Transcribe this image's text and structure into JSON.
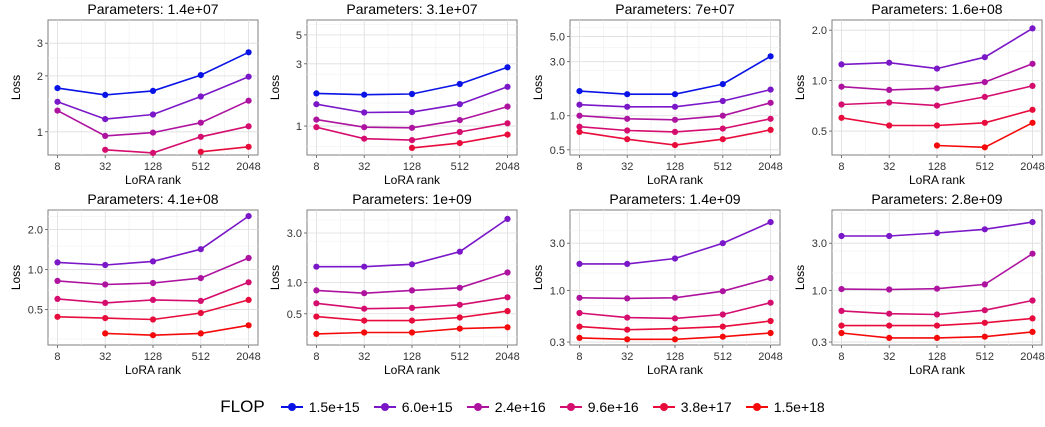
{
  "legend": {
    "title": "FLOP",
    "items": [
      {
        "label": "1.5e+15",
        "color": "#0a13e6"
      },
      {
        "label": "6.0e+15",
        "color": "#7a17c8"
      },
      {
        "label": "2.4e+16",
        "color": "#ad139e"
      },
      {
        "label": "9.6e+16",
        "color": "#d40d6e"
      },
      {
        "label": "3.8e+17",
        "color": "#e80c3c"
      },
      {
        "label": "1.5e+18",
        "color": "#f40a0a"
      }
    ]
  },
  "chart_data": [
    {
      "type": "line",
      "title": "Parameters: 1.4e+07",
      "xlabel": "LoRA rank",
      "ylabel": "Loss",
      "x": [
        8,
        32,
        128,
        512,
        2048
      ],
      "x_scale": "log2",
      "y_scale": "log10",
      "ylim": [
        0.75,
        4.0
      ],
      "yticks": [
        1,
        2,
        3
      ],
      "ytick_labels": [
        "1",
        "2",
        "3"
      ],
      "series": [
        {
          "name": "1.5e+15",
          "values": [
            1.72,
            1.58,
            1.66,
            2.02,
            2.68
          ]
        },
        {
          "name": "6.0e+15",
          "values": [
            1.45,
            1.17,
            1.24,
            1.55,
            1.98
          ]
        },
        {
          "name": "2.4e+16",
          "values": [
            1.3,
            0.95,
            0.99,
            1.12,
            1.47
          ]
        },
        {
          "name": "9.6e+16",
          "values": [
            null,
            0.8,
            0.77,
            0.94,
            1.07
          ]
        },
        {
          "name": "3.8e+17",
          "values": [
            null,
            null,
            null,
            0.78,
            0.83
          ]
        },
        {
          "name": "1.5e+18",
          "values": [
            null,
            null,
            null,
            null,
            null
          ]
        }
      ]
    },
    {
      "type": "line",
      "title": "Parameters: 3.1e+07",
      "xlabel": "LoRA rank",
      "ylabel": "Loss",
      "x": [
        8,
        32,
        128,
        512,
        2048
      ],
      "x_scale": "log2",
      "y_scale": "log10",
      "ylim": [
        0.6,
        6.5
      ],
      "yticks": [
        1,
        3,
        5
      ],
      "ytick_labels": [
        "1",
        "3",
        "5"
      ],
      "series": [
        {
          "name": "1.5e+15",
          "values": [
            1.78,
            1.74,
            1.76,
            2.1,
            2.82
          ]
        },
        {
          "name": "6.0e+15",
          "values": [
            1.47,
            1.27,
            1.28,
            1.47,
            2.0
          ]
        },
        {
          "name": "2.4e+16",
          "values": [
            1.12,
            0.98,
            0.97,
            1.11,
            1.41
          ]
        },
        {
          "name": "9.6e+16",
          "values": [
            0.98,
            0.8,
            0.78,
            0.9,
            1.05
          ]
        },
        {
          "name": "3.8e+17",
          "values": [
            null,
            null,
            0.68,
            0.74,
            0.86
          ]
        },
        {
          "name": "1.5e+18",
          "values": [
            null,
            null,
            null,
            null,
            null
          ]
        }
      ]
    },
    {
      "type": "line",
      "title": "Parameters: 7e+07",
      "xlabel": "LoRA rank",
      "ylabel": "Loss",
      "x": [
        8,
        32,
        128,
        512,
        2048
      ],
      "x_scale": "log2",
      "y_scale": "log10",
      "ylim": [
        0.45,
        7.0
      ],
      "yticks": [
        0.5,
        1.0,
        3.0,
        5.0
      ],
      "ytick_labels": [
        "0.5",
        "1.0",
        "3.0",
        "5.0"
      ],
      "series": [
        {
          "name": "1.5e+15",
          "values": [
            1.65,
            1.55,
            1.55,
            1.9,
            3.35
          ]
        },
        {
          "name": "6.0e+15",
          "values": [
            1.25,
            1.2,
            1.2,
            1.35,
            1.7
          ]
        },
        {
          "name": "2.4e+16",
          "values": [
            1.0,
            0.94,
            0.92,
            1.0,
            1.3
          ]
        },
        {
          "name": "9.6e+16",
          "values": [
            0.8,
            0.74,
            0.72,
            0.77,
            0.94
          ]
        },
        {
          "name": "3.8e+17",
          "values": [
            0.72,
            0.62,
            0.55,
            0.62,
            0.75
          ]
        },
        {
          "name": "1.5e+18",
          "values": [
            null,
            null,
            null,
            null,
            null
          ]
        }
      ]
    },
    {
      "type": "line",
      "title": "Parameters: 1.6e+08",
      "xlabel": "LoRA rank",
      "ylabel": "Loss",
      "x": [
        8,
        32,
        128,
        512,
        2048
      ],
      "x_scale": "log2",
      "y_scale": "log10",
      "ylim": [
        0.36,
        2.3
      ],
      "yticks": [
        0.5,
        1.0,
        2.0
      ],
      "ytick_labels": [
        "0.5",
        "1.0",
        "2.0"
      ],
      "series": [
        {
          "name": "1.5e+15",
          "values": [
            null,
            null,
            null,
            null,
            null
          ]
        },
        {
          "name": "6.0e+15",
          "values": [
            1.25,
            1.28,
            1.18,
            1.38,
            2.05
          ]
        },
        {
          "name": "2.4e+16",
          "values": [
            0.92,
            0.88,
            0.9,
            0.98,
            1.26
          ]
        },
        {
          "name": "9.6e+16",
          "values": [
            0.72,
            0.74,
            0.71,
            0.8,
            0.93
          ]
        },
        {
          "name": "3.8e+17",
          "values": [
            0.6,
            0.54,
            0.54,
            0.56,
            0.67
          ]
        },
        {
          "name": "1.5e+18",
          "values": [
            null,
            null,
            0.41,
            0.4,
            0.56
          ]
        }
      ]
    },
    {
      "type": "line",
      "title": "Parameters: 4.1e+08",
      "xlabel": "LoRA rank",
      "ylabel": "Loss",
      "x": [
        8,
        32,
        128,
        512,
        2048
      ],
      "x_scale": "log2",
      "y_scale": "log10",
      "ylim": [
        0.27,
        2.8
      ],
      "yticks": [
        0.5,
        1.0,
        2.0
      ],
      "ytick_labels": [
        "0.5",
        "1.0",
        "2.0"
      ],
      "series": [
        {
          "name": "1.5e+15",
          "values": [
            null,
            null,
            null,
            null,
            null
          ]
        },
        {
          "name": "6.0e+15",
          "values": [
            1.13,
            1.08,
            1.15,
            1.42,
            2.52
          ]
        },
        {
          "name": "2.4e+16",
          "values": [
            0.82,
            0.77,
            0.79,
            0.86,
            1.22
          ]
        },
        {
          "name": "9.6e+16",
          "values": [
            0.6,
            0.56,
            0.59,
            0.58,
            0.8
          ]
        },
        {
          "name": "3.8e+17",
          "values": [
            0.44,
            0.43,
            0.42,
            0.47,
            0.59
          ]
        },
        {
          "name": "1.5e+18",
          "values": [
            null,
            0.33,
            0.32,
            0.33,
            0.38
          ]
        }
      ]
    },
    {
      "type": "line",
      "title": "Parameters: 1e+09",
      "xlabel": "LoRA rank",
      "ylabel": "Loss",
      "x": [
        8,
        32,
        128,
        512,
        2048
      ],
      "x_scale": "log2",
      "y_scale": "log10",
      "ylim": [
        0.25,
        5.0
      ],
      "yticks": [
        0.5,
        1.0,
        3.0
      ],
      "ytick_labels": [
        "0.5",
        "1.0",
        "3.0"
      ],
      "series": [
        {
          "name": "1.5e+15",
          "values": [
            null,
            null,
            null,
            null,
            null
          ]
        },
        {
          "name": "6.0e+15",
          "values": [
            1.42,
            1.42,
            1.5,
            1.98,
            4.1
          ]
        },
        {
          "name": "2.4e+16",
          "values": [
            0.84,
            0.79,
            0.84,
            0.89,
            1.25
          ]
        },
        {
          "name": "9.6e+16",
          "values": [
            0.63,
            0.56,
            0.57,
            0.61,
            0.72
          ]
        },
        {
          "name": "3.8e+17",
          "values": [
            0.47,
            0.43,
            0.43,
            0.46,
            0.53
          ]
        },
        {
          "name": "1.5e+18",
          "values": [
            0.32,
            0.33,
            0.33,
            0.36,
            0.37
          ]
        }
      ]
    },
    {
      "type": "line",
      "title": "Parameters: 1.4e+09",
      "xlabel": "LoRA rank",
      "ylabel": "Loss",
      "x": [
        8,
        32,
        128,
        512,
        2048
      ],
      "x_scale": "log2",
      "y_scale": "log10",
      "ylim": [
        0.28,
        6.5
      ],
      "yticks": [
        0.3,
        1.0,
        3.0
      ],
      "ytick_labels": [
        "0.3",
        "1.0",
        "3.0"
      ],
      "series": [
        {
          "name": "1.5e+15",
          "values": [
            null,
            null,
            null,
            null,
            null
          ]
        },
        {
          "name": "6.0e+15",
          "values": [
            1.85,
            1.85,
            2.1,
            3.0,
            4.9
          ]
        },
        {
          "name": "2.4e+16",
          "values": [
            0.84,
            0.83,
            0.84,
            0.98,
            1.33
          ]
        },
        {
          "name": "9.6e+16",
          "values": [
            0.59,
            0.53,
            0.52,
            0.57,
            0.75
          ]
        },
        {
          "name": "3.8e+17",
          "values": [
            0.43,
            0.4,
            0.41,
            0.43,
            0.49
          ]
        },
        {
          "name": "1.5e+18",
          "values": [
            0.33,
            0.32,
            0.32,
            0.34,
            0.37
          ]
        }
      ]
    },
    {
      "type": "line",
      "title": "Parameters: 2.8e+09",
      "xlabel": "LoRA rank",
      "ylabel": "Loss",
      "x": [
        8,
        32,
        128,
        512,
        2048
      ],
      "x_scale": "log2",
      "y_scale": "log10",
      "ylim": [
        0.28,
        6.5
      ],
      "yticks": [
        0.3,
        1.0,
        3.0
      ],
      "ytick_labels": [
        "0.3",
        "1.0",
        "3.0"
      ],
      "series": [
        {
          "name": "1.5e+15",
          "values": [
            null,
            null,
            null,
            null,
            null
          ]
        },
        {
          "name": "6.0e+15",
          "values": [
            3.55,
            3.55,
            3.8,
            4.15,
            4.9
          ]
        },
        {
          "name": "2.4e+16",
          "values": [
            1.03,
            1.02,
            1.04,
            1.15,
            2.35
          ]
        },
        {
          "name": "9.6e+16",
          "values": [
            0.62,
            0.58,
            0.57,
            0.63,
            0.79
          ]
        },
        {
          "name": "3.8e+17",
          "values": [
            0.44,
            0.44,
            0.44,
            0.47,
            0.52
          ]
        },
        {
          "name": "1.5e+18",
          "values": [
            0.37,
            0.33,
            0.33,
            0.34,
            0.38
          ]
        }
      ]
    }
  ]
}
